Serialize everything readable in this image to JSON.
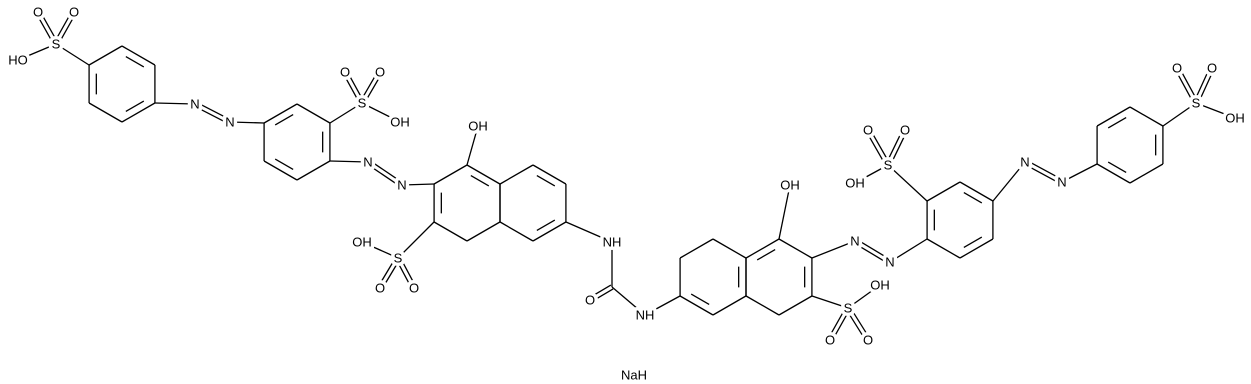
{
  "atoms": [
    "HO",
    "S",
    "O",
    "O",
    "N",
    "N",
    "O",
    "O",
    "S",
    "OH",
    "N",
    "N",
    "OH",
    "OH",
    "S",
    "O",
    "O",
    "NH",
    "O",
    "NH",
    "OH",
    "N",
    "N",
    "OH",
    "S",
    "O",
    "O",
    "O",
    "O",
    "S",
    "OH",
    "N",
    "N",
    "O",
    "O",
    "S",
    "OH",
    "NaH"
  ]
}
